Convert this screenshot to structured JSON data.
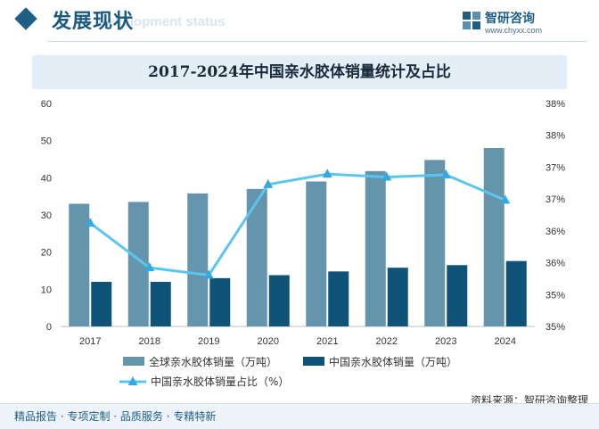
{
  "header": {
    "section_title": "发展现状",
    "section_subtitle": "Development status",
    "logo_name": "智研咨询",
    "logo_url": "www.chyxx.com"
  },
  "chart_data": {
    "type": "bar",
    "title": "2017-2024年中国亲水胶体销量统计及占比",
    "categories": [
      "2017",
      "2018",
      "2019",
      "2020",
      "2021",
      "2022",
      "2023",
      "2024"
    ],
    "series": [
      {
        "name": "全球亲水胶体销量（万吨）",
        "type": "bar",
        "axis": "left",
        "color": "#6594ad",
        "values": [
          33.0,
          33.5,
          35.8,
          37.0,
          39.0,
          41.8,
          44.8,
          48.0
        ]
      },
      {
        "name": "中国亲水胶体销量（万吨）",
        "type": "bar",
        "axis": "left",
        "color": "#0f5478",
        "values": [
          12.0,
          12.0,
          13.0,
          13.8,
          14.8,
          15.8,
          16.5,
          17.6
        ]
      },
      {
        "name": "中国亲水胶体销量占比（%）",
        "type": "line",
        "axis": "right",
        "color": "#5cc5ee",
        "values": [
          36.39,
          35.79,
          35.69,
          36.91,
          37.05,
          37.01,
          37.04,
          36.7
        ]
      }
    ],
    "left_axis": {
      "min": 0,
      "max": 60,
      "ticks": [
        "0",
        "10",
        "20",
        "30",
        "40",
        "50",
        "60"
      ]
    },
    "right_axis": {
      "min": 35,
      "max": 38,
      "ticks": [
        "35%",
        "35%",
        "36%",
        "36%",
        "37%",
        "37%",
        "38%",
        "38%"
      ]
    },
    "grid": false,
    "legend_position": "bottom"
  },
  "source_text": "资料来源：智研咨询整理",
  "footer_text": "精品报告 · 专项定制 · 品质服务 · 专精特新"
}
